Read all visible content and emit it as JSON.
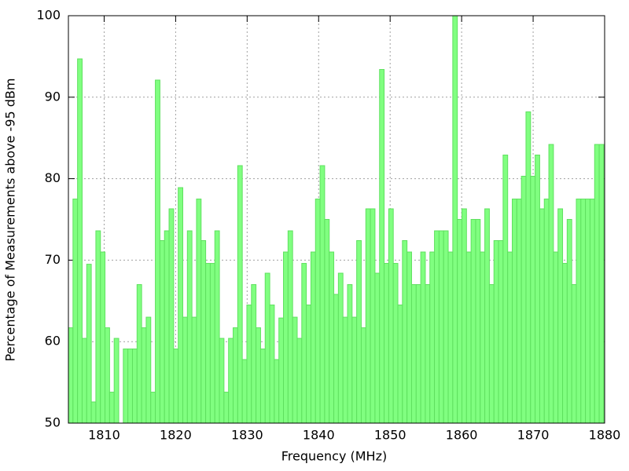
{
  "chart_data": {
    "type": "bar",
    "color": "#80ff80",
    "edge_color": "#5fe05f",
    "bar_width": 0.64,
    "x_label": "Frequency (MHz)",
    "y_label": "Percentage of Measurements above -95 dBm",
    "xlim": [
      1805,
      1880
    ],
    "xticks": [
      1810,
      1820,
      1830,
      1840,
      1850,
      1860,
      1870,
      1880
    ],
    "ylim": [
      50,
      100
    ],
    "yticks": [
      50,
      60,
      70,
      80,
      90,
      100
    ],
    "grid": true,
    "x": [
      1805.32,
      1805.96,
      1806.6,
      1807.24,
      1807.88,
      1808.52,
      1809.16,
      1809.8,
      1810.44,
      1811.08,
      1811.72,
      1812.36,
      1813.0,
      1813.64,
      1814.28,
      1814.92,
      1815.56,
      1816.2,
      1816.84,
      1817.48,
      1818.12,
      1818.76,
      1819.4,
      1820.04,
      1820.68,
      1821.32,
      1821.96,
      1822.6,
      1823.24,
      1823.88,
      1824.52,
      1825.16,
      1825.8,
      1826.44,
      1827.08,
      1827.72,
      1828.36,
      1829.0,
      1829.64,
      1830.28,
      1830.92,
      1831.56,
      1832.2,
      1832.84,
      1833.48,
      1834.12,
      1834.76,
      1835.4,
      1836.04,
      1836.68,
      1837.32,
      1837.96,
      1838.6,
      1839.24,
      1839.88,
      1840.52,
      1841.16,
      1841.8,
      1842.44,
      1843.08,
      1843.72,
      1844.36,
      1845.0,
      1845.64,
      1846.28,
      1846.92,
      1847.56,
      1848.2,
      1848.84,
      1849.48,
      1850.12,
      1850.76,
      1851.4,
      1852.04,
      1852.68,
      1853.32,
      1853.96,
      1854.6,
      1855.24,
      1855.88,
      1856.52,
      1857.16,
      1857.8,
      1858.44,
      1859.08,
      1859.72,
      1860.36,
      1861.0,
      1861.64,
      1862.28,
      1862.92,
      1863.56,
      1864.2,
      1864.84,
      1865.48,
      1866.12,
      1866.76,
      1867.4,
      1868.04,
      1868.68,
      1869.32,
      1869.96,
      1870.6,
      1871.24,
      1871.88,
      1872.52,
      1873.16,
      1873.8,
      1874.44,
      1875.08,
      1875.72,
      1876.36,
      1877.0,
      1877.64,
      1878.28,
      1878.92,
      1879.56
    ],
    "values": [
      61.7,
      77.5,
      94.7,
      60.4,
      69.5,
      52.6,
      73.6,
      71,
      61.7,
      53.8,
      60.4,
      50,
      59.1,
      59.1,
      59.1,
      67,
      61.7,
      63,
      53.8,
      92.1,
      72.4,
      73.6,
      76.3,
      59.1,
      78.9,
      63,
      73.6,
      63,
      77.5,
      72.4,
      69.6,
      69.6,
      73.6,
      60.4,
      53.8,
      60.4,
      61.7,
      81.6,
      57.8,
      64.5,
      67,
      61.7,
      59.1,
      68.4,
      64.5,
      57.8,
      62.9,
      71,
      73.6,
      63,
      60.4,
      69.6,
      64.5,
      71,
      77.5,
      81.6,
      75,
      71,
      65.8,
      68.4,
      63,
      67,
      63,
      72.4,
      61.7,
      76.3,
      76.3,
      68.4,
      93.4,
      69.6,
      76.3,
      69.6,
      64.5,
      72.4,
      71,
      67,
      67,
      71,
      67,
      71,
      73.6,
      73.6,
      73.6,
      71,
      100,
      75,
      76.3,
      71,
      75,
      75,
      71,
      76.3,
      67,
      72.4,
      72.4,
      82.9,
      71,
      77.5,
      77.5,
      80.3,
      88.2,
      80.3,
      82.9,
      76.3,
      77.5,
      84.2,
      71,
      76.3,
      69.6,
      75,
      67,
      77.5,
      77.5,
      77.5,
      77.5,
      84.2,
      84.2
    ]
  }
}
